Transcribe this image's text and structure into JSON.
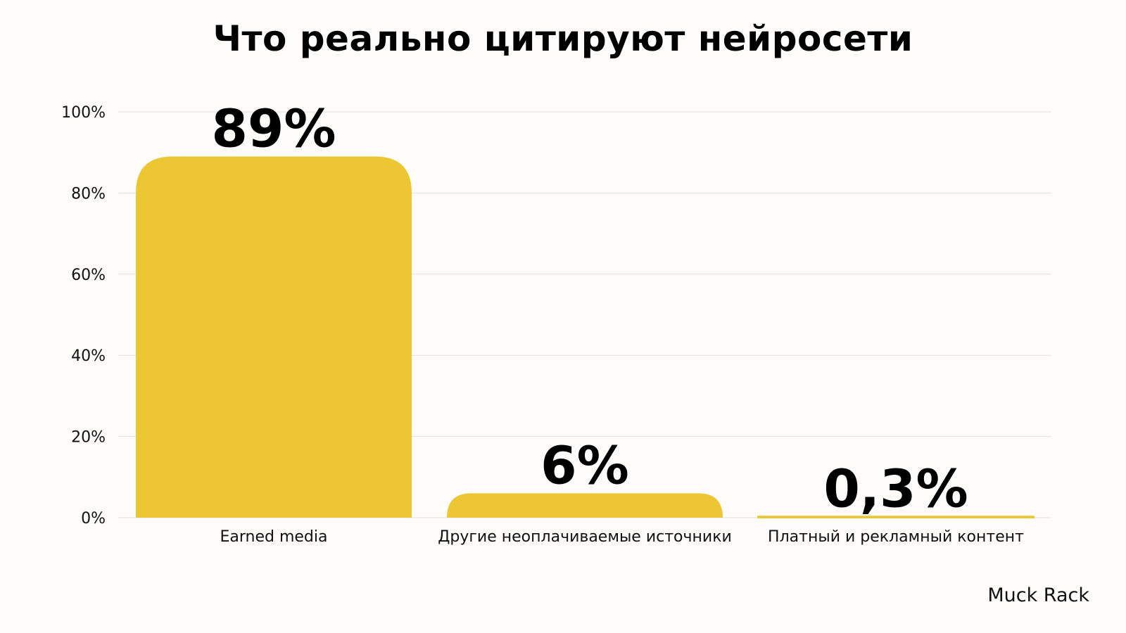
{
  "chart_data": {
    "type": "bar",
    "title": "Что реально цитируют нейросети",
    "categories": [
      "Earned media",
      "Другие неоплачиваемые источники",
      "Платный и рекламный контент"
    ],
    "values": [
      89,
      6,
      0.3
    ],
    "data_labels": [
      "89%",
      "6%",
      "0,3%"
    ],
    "ylim": [
      0,
      100
    ],
    "yticks": [
      0,
      20,
      40,
      60,
      80,
      100
    ],
    "ytick_labels": [
      "0%",
      "20%",
      "40%",
      "60%",
      "80%",
      "100%"
    ],
    "grid": true,
    "legend": "none",
    "bar_color": "#ecc733"
  },
  "source": "Muck Rack"
}
